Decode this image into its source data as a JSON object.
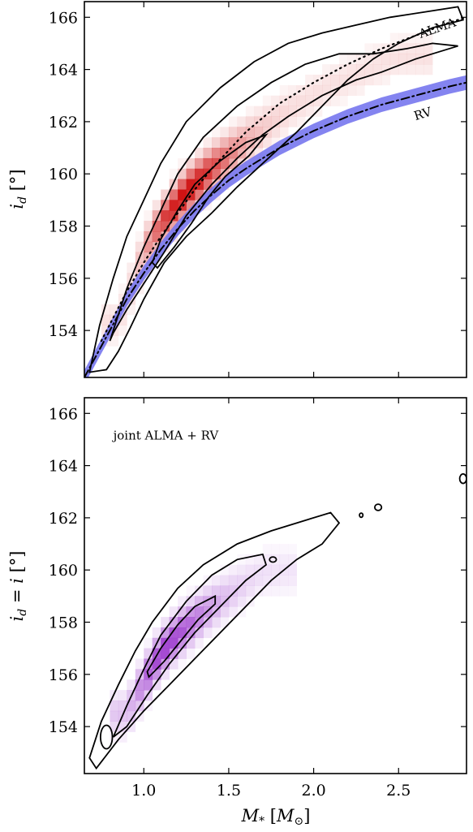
{
  "chart_data": [
    {
      "type": "heatmap",
      "panel": "top",
      "xlim": [
        0.65,
        2.9
      ],
      "ylim": [
        152.2,
        166.6
      ],
      "xticks": [
        "1.0",
        "1.5",
        "2.0",
        "2.5"
      ],
      "yticks": [
        "154",
        "156",
        "158",
        "160",
        "162",
        "164",
        "166"
      ],
      "xtick_values": [
        1.0,
        1.5,
        2.0,
        2.5
      ],
      "ytick_values": [
        154,
        156,
        158,
        160,
        162,
        164,
        166
      ],
      "show_xtick_labels": false,
      "ylabel": "i_d [°]",
      "xlabel": "",
      "colormap": "#cc0000",
      "density_center": [
        {
          "x": 0.85,
          "y": 154.3
        },
        {
          "x": 1.0,
          "y": 156.8
        },
        {
          "x": 1.1,
          "y": 158.0
        },
        {
          "x": 1.25,
          "y": 159.3
        },
        {
          "x": 1.4,
          "y": 160.3
        },
        {
          "x": 1.6,
          "y": 161.4
        },
        {
          "x": 1.8,
          "y": 162.3
        },
        {
          "x": 2.1,
          "y": 163.4
        },
        {
          "x": 2.5,
          "y": 164.5
        }
      ],
      "peak": {
        "x": 1.26,
        "y": 159.2
      },
      "series": [
        {
          "name": "ALMA",
          "style": "dotted",
          "x": [
            0.75,
            0.9,
            1.0,
            1.1,
            1.2,
            1.3,
            1.4,
            1.5,
            1.6,
            1.8,
            2.0,
            2.2,
            2.4,
            2.6,
            2.8,
            2.9
          ],
          "y": [
            153.6,
            155.5,
            156.6,
            157.6,
            158.5,
            159.4,
            160.2,
            160.9,
            161.6,
            162.7,
            163.5,
            164.2,
            164.8,
            165.3,
            165.8,
            166.0
          ]
        },
        {
          "name": "RV",
          "style": "dash-dot",
          "band_color": "#7777ee",
          "band_halfwidth": 0.28,
          "x": [
            0.65,
            0.8,
            0.9,
            1.0,
            1.1,
            1.2,
            1.3,
            1.4,
            1.5,
            1.6,
            1.8,
            2.0,
            2.2,
            2.4,
            2.6,
            2.8,
            2.9
          ],
          "y": [
            152.2,
            154.0,
            155.2,
            156.2,
            157.1,
            157.9,
            158.6,
            159.2,
            159.75,
            160.2,
            161.0,
            161.65,
            162.2,
            162.65,
            163.0,
            163.35,
            163.5
          ]
        }
      ],
      "contours": [
        {
          "level": "inner",
          "points": [
            [
              1.05,
              156.6
            ],
            [
              1.1,
              157.5
            ],
            [
              1.2,
              158.6
            ],
            [
              1.3,
              159.6
            ],
            [
              1.45,
              160.5
            ],
            [
              1.6,
              161.2
            ],
            [
              1.72,
              161.5
            ],
            [
              1.62,
              160.7
            ],
            [
              1.48,
              159.9
            ],
            [
              1.38,
              159.1
            ],
            [
              1.28,
              158.1
            ],
            [
              1.18,
              157.2
            ],
            [
              1.08,
              156.4
            ],
            [
              1.05,
              156.6
            ]
          ]
        },
        {
          "level": "middle",
          "points": [
            [
              0.8,
              153.6
            ],
            [
              0.9,
              155.6
            ],
            [
              1.0,
              157.2
            ],
            [
              1.1,
              158.6
            ],
            [
              1.2,
              160.0
            ],
            [
              1.35,
              161.4
            ],
            [
              1.55,
              162.6
            ],
            [
              1.75,
              163.5
            ],
            [
              1.95,
              164.2
            ],
            [
              2.15,
              164.6
            ],
            [
              2.35,
              164.6
            ],
            [
              2.55,
              164.8
            ],
            [
              2.7,
              165.0
            ],
            [
              2.85,
              164.9
            ],
            [
              2.6,
              164.4
            ],
            [
              2.4,
              163.9
            ],
            [
              2.25,
              163.6
            ],
            [
              2.05,
              163.0
            ],
            [
              1.85,
              162.2
            ],
            [
              1.7,
              161.5
            ],
            [
              1.55,
              160.6
            ],
            [
              1.4,
              159.6
            ],
            [
              1.25,
              158.4
            ],
            [
              1.12,
              157.0
            ],
            [
              1.0,
              155.8
            ],
            [
              0.9,
              154.8
            ],
            [
              0.82,
              153.9
            ],
            [
              0.8,
              153.6
            ]
          ]
        },
        {
          "level": "outer",
          "points": [
            [
              0.68,
              152.4
            ],
            [
              0.74,
              154.2
            ],
            [
              0.82,
              156.0
            ],
            [
              0.9,
              157.6
            ],
            [
              1.0,
              159.0
            ],
            [
              1.1,
              160.4
            ],
            [
              1.25,
              162.0
            ],
            [
              1.45,
              163.3
            ],
            [
              1.65,
              164.3
            ],
            [
              1.85,
              165.0
            ],
            [
              2.05,
              165.4
            ],
            [
              2.25,
              165.7
            ],
            [
              2.45,
              166.0
            ],
            [
              2.65,
              166.2
            ],
            [
              2.85,
              166.4
            ],
            [
              2.88,
              165.9
            ],
            [
              2.7,
              165.6
            ],
            [
              2.5,
              165.0
            ],
            [
              2.35,
              164.4
            ],
            [
              2.2,
              163.6
            ],
            [
              2.05,
              162.6
            ],
            [
              1.9,
              161.6
            ],
            [
              1.7,
              160.4
            ],
            [
              1.55,
              159.5
            ],
            [
              1.4,
              158.5
            ],
            [
              1.25,
              157.6
            ],
            [
              1.12,
              156.6
            ],
            [
              1.0,
              155.2
            ],
            [
              0.92,
              154.1
            ],
            [
              0.85,
              153.2
            ],
            [
              0.78,
              152.5
            ],
            [
              0.68,
              152.4
            ]
          ]
        }
      ],
      "annotations": [
        {
          "text": "ALMA",
          "x": 2.63,
          "y": 165.2,
          "rotate": -19
        },
        {
          "text": "RV",
          "x": 2.6,
          "y": 162.05,
          "rotate": -17
        }
      ]
    },
    {
      "type": "heatmap",
      "panel": "bottom",
      "xlim": [
        0.65,
        2.9
      ],
      "ylim": [
        152.2,
        166.6
      ],
      "xticks": [
        "1.0",
        "1.5",
        "2.0",
        "2.5"
      ],
      "yticks": [
        "154",
        "156",
        "158",
        "160",
        "162",
        "164",
        "166"
      ],
      "xtick_values": [
        1.0,
        1.5,
        2.0,
        2.5
      ],
      "ytick_values": [
        154,
        156,
        158,
        160,
        162,
        164,
        166
      ],
      "show_xtick_labels": true,
      "ylabel": "i_d = i [°]",
      "xlabel": "M_* [M_⊙]",
      "colormap": "#9933cc",
      "density_center": [
        {
          "x": 0.9,
          "y": 154.3
        },
        {
          "x": 1.0,
          "y": 155.6
        },
        {
          "x": 1.1,
          "y": 156.8
        },
        {
          "x": 1.2,
          "y": 157.6
        },
        {
          "x": 1.35,
          "y": 158.5
        },
        {
          "x": 1.5,
          "y": 159.2
        },
        {
          "x": 1.7,
          "y": 160.0
        }
      ],
      "peak": {
        "x": 1.11,
        "y": 157.0
      },
      "contours": [
        {
          "level": "inner",
          "points": [
            [
              1.02,
              156.1
            ],
            [
              1.1,
              157.0
            ],
            [
              1.2,
              157.9
            ],
            [
              1.3,
              158.6
            ],
            [
              1.42,
              159.0
            ],
            [
              1.42,
              158.7
            ],
            [
              1.32,
              158.1
            ],
            [
              1.22,
              157.3
            ],
            [
              1.12,
              156.5
            ],
            [
              1.03,
              155.9
            ],
            [
              1.02,
              156.1
            ]
          ]
        },
        {
          "level": "middle",
          "points": [
            [
              0.82,
              153.6
            ],
            [
              0.9,
              154.8
            ],
            [
              1.0,
              156.2
            ],
            [
              1.1,
              157.5
            ],
            [
              1.25,
              158.8
            ],
            [
              1.4,
              159.8
            ],
            [
              1.55,
              160.4
            ],
            [
              1.7,
              160.6
            ],
            [
              1.72,
              160.2
            ],
            [
              1.6,
              159.6
            ],
            [
              1.45,
              158.6
            ],
            [
              1.3,
              157.6
            ],
            [
              1.15,
              156.4
            ],
            [
              1.02,
              155.2
            ],
            [
              0.9,
              154.0
            ],
            [
              0.82,
              153.6
            ]
          ]
        },
        {
          "level": "outer",
          "points": [
            [
              0.68,
              152.8
            ],
            [
              0.75,
              154.2
            ],
            [
              0.85,
              155.6
            ],
            [
              0.95,
              156.9
            ],
            [
              1.05,
              158.0
            ],
            [
              1.2,
              159.3
            ],
            [
              1.35,
              160.2
            ],
            [
              1.55,
              161.0
            ],
            [
              1.75,
              161.5
            ],
            [
              1.95,
              161.9
            ],
            [
              2.1,
              162.2
            ],
            [
              2.15,
              161.8
            ],
            [
              2.05,
              161.0
            ],
            [
              1.9,
              160.4
            ],
            [
              1.75,
              159.6
            ],
            [
              1.6,
              158.6
            ],
            [
              1.45,
              157.6
            ],
            [
              1.3,
              156.6
            ],
            [
              1.15,
              155.6
            ],
            [
              1.0,
              154.6
            ],
            [
              0.85,
              153.5
            ],
            [
              0.72,
              152.4
            ],
            [
              0.68,
              152.8
            ]
          ]
        }
      ],
      "islands": [
        {
          "x": 0.78,
          "y": 153.6,
          "rx": 0.035,
          "ry": 0.45
        },
        {
          "x": 1.76,
          "y": 160.4,
          "rx": 0.02,
          "ry": 0.1
        },
        {
          "x": 2.28,
          "y": 162.1,
          "rx": 0.01,
          "ry": 0.08
        },
        {
          "x": 2.38,
          "y": 162.4,
          "rx": 0.02,
          "ry": 0.12
        },
        {
          "x": 2.88,
          "y": 163.5,
          "rx": 0.02,
          "ry": 0.18
        }
      ],
      "annotations": [
        {
          "text": "joint ALMA + RV",
          "x": 0.82,
          "y": 165.0,
          "rotate": 0
        }
      ]
    }
  ]
}
